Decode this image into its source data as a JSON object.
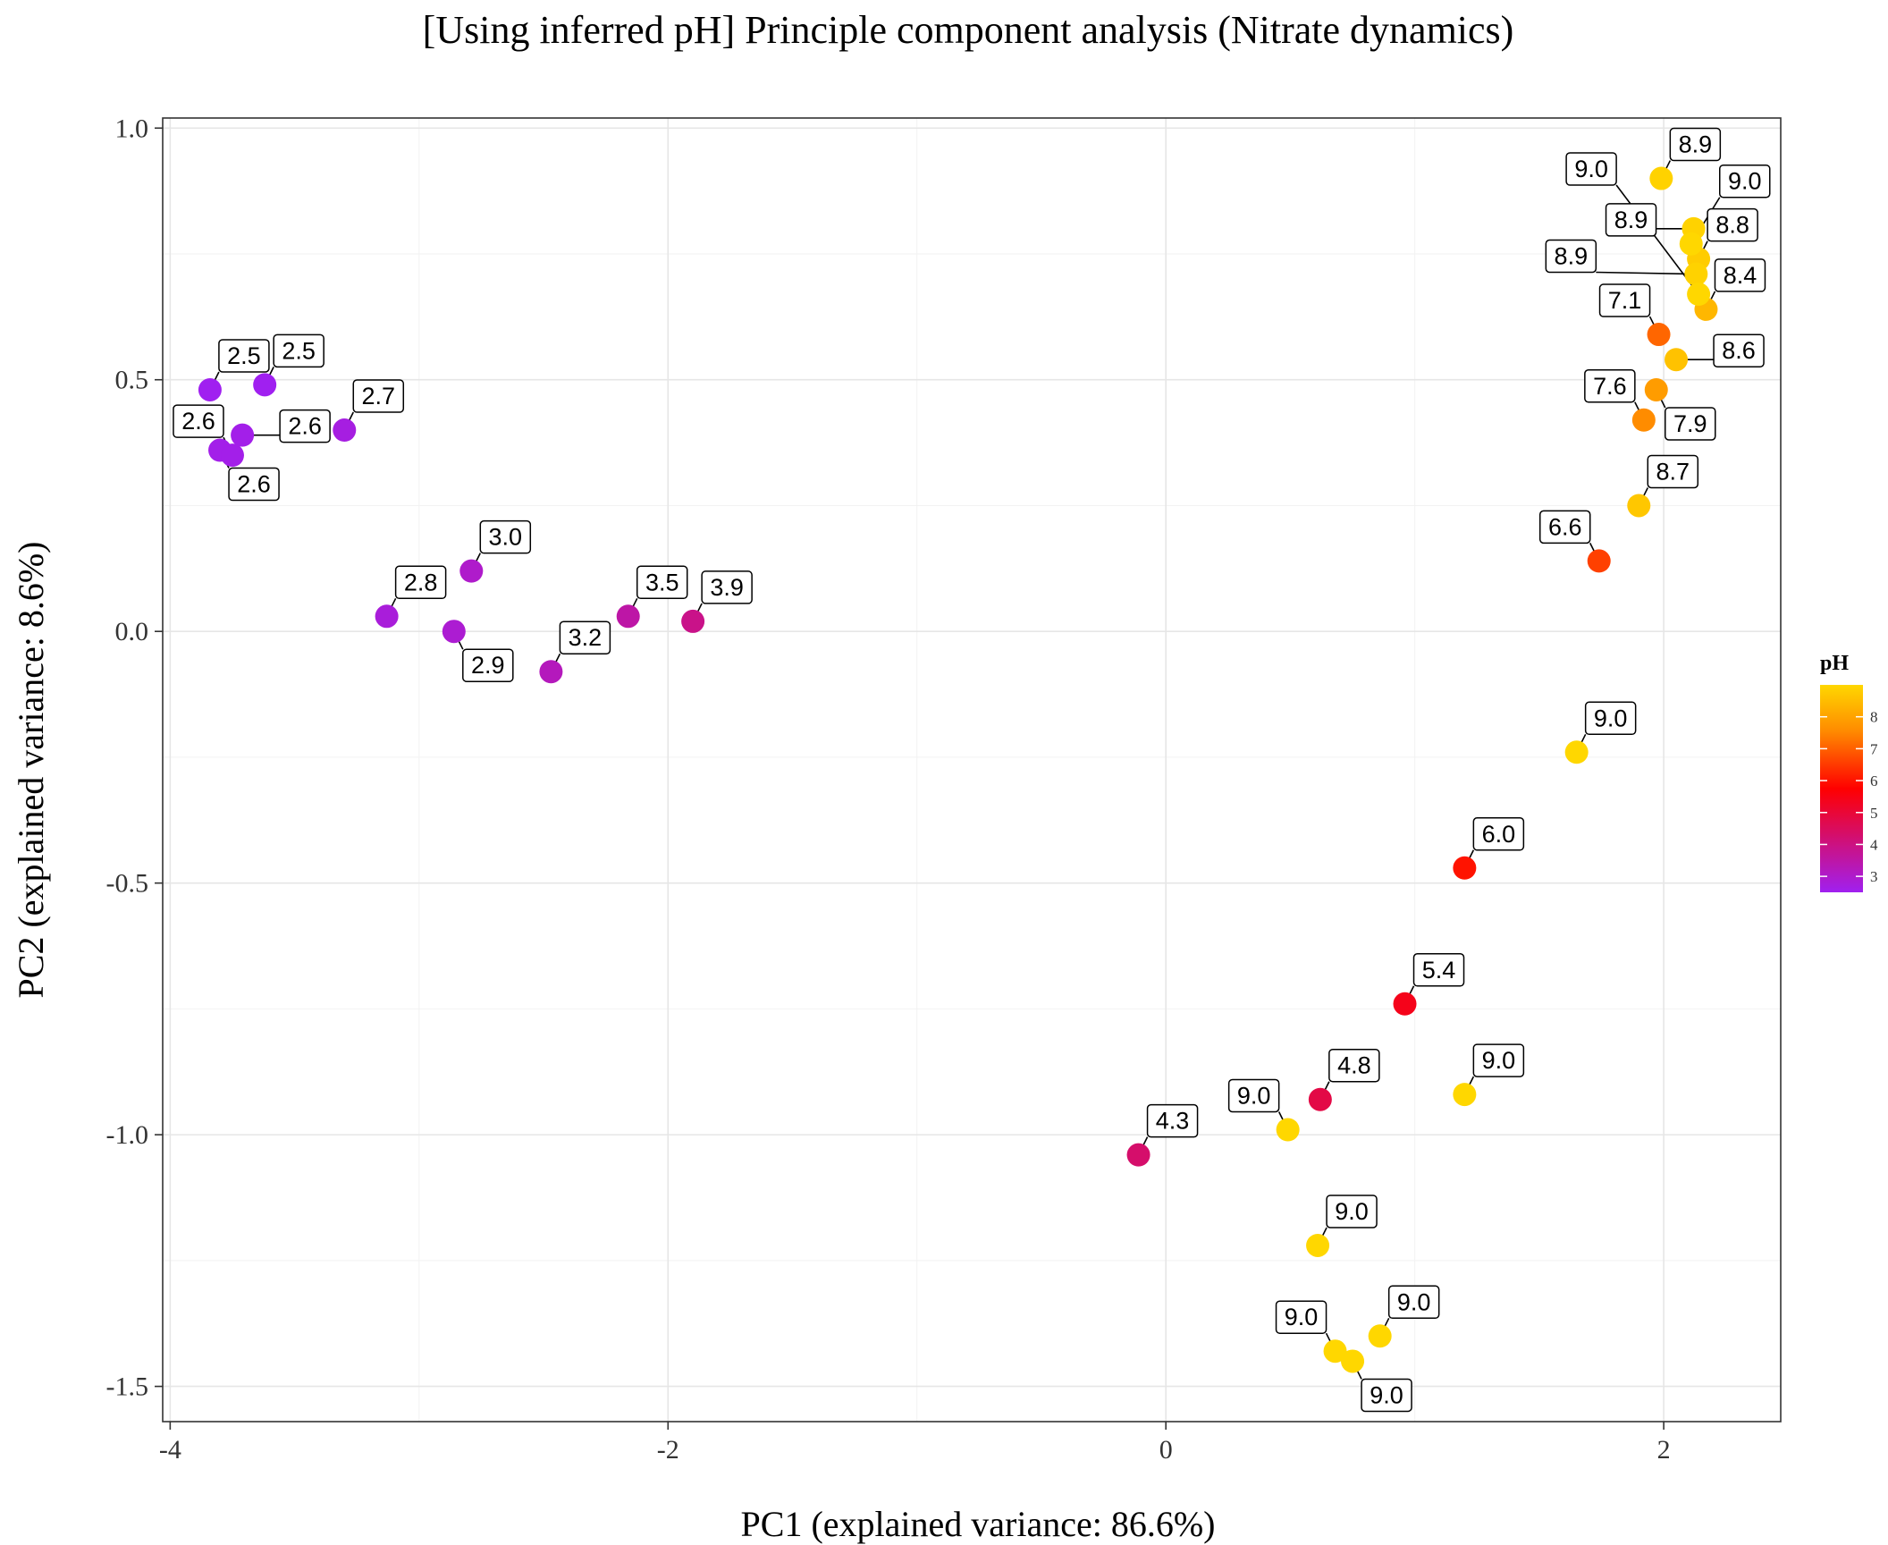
{
  "chart_data": {
    "type": "scatter",
    "title": "[Using inferred pH] Principle component analysis (Nitrate dynamics)",
    "xlabel": "PC1 (explained variance: 86.6%)",
    "ylabel": "PC2 (explained variance: 8.6%)",
    "xlim": [
      -4.03,
      2.47
    ],
    "ylim": [
      -1.57,
      1.02
    ],
    "x_ticks": [
      -4,
      -2,
      0,
      2
    ],
    "x_tick_labels": [
      "-4",
      "-2",
      "0",
      "2"
    ],
    "y_ticks": [
      1.0,
      0.5,
      0.0,
      -0.5,
      -1.0,
      -1.5
    ],
    "y_tick_labels": [
      "1.0",
      "0.5",
      "0.0",
      "-0.5",
      "-1.0",
      "-1.5"
    ],
    "grid": true,
    "color_scale": {
      "title": "pH",
      "ticks": [
        3,
        4,
        5,
        6,
        7,
        8
      ],
      "range": [
        2.5,
        9.0
      ],
      "colors": [
        "#a020f0",
        "#ff0000",
        "#ff8c00",
        "#ffd700"
      ]
    },
    "points": [
      {
        "x": -3.84,
        "y": 0.48,
        "ph": 2.5,
        "label": "2.5"
      },
      {
        "x": -3.62,
        "y": 0.49,
        "ph": 2.5,
        "label": "2.5"
      },
      {
        "x": -3.8,
        "y": 0.36,
        "ph": 2.6,
        "label": "2.6"
      },
      {
        "x": -3.71,
        "y": 0.39,
        "ph": 2.6,
        "label": "2.6"
      },
      {
        "x": -3.75,
        "y": 0.35,
        "ph": 2.6,
        "label": "2.6"
      },
      {
        "x": -3.3,
        "y": 0.4,
        "ph": 2.7,
        "label": "2.7"
      },
      {
        "x": -3.13,
        "y": 0.03,
        "ph": 2.8,
        "label": "2.8"
      },
      {
        "x": -2.86,
        "y": 0.0,
        "ph": 2.9,
        "label": "2.9"
      },
      {
        "x": -2.79,
        "y": 0.12,
        "ph": 3.0,
        "label": "3.0"
      },
      {
        "x": -2.47,
        "y": -0.08,
        "ph": 3.2,
        "label": "3.2"
      },
      {
        "x": -2.16,
        "y": 0.03,
        "ph": 3.5,
        "label": "3.5"
      },
      {
        "x": -1.9,
        "y": 0.02,
        "ph": 3.9,
        "label": "3.9"
      },
      {
        "x": -0.11,
        "y": -1.04,
        "ph": 4.3,
        "label": "4.3"
      },
      {
        "x": 0.62,
        "y": -0.93,
        "ph": 4.8,
        "label": "4.8"
      },
      {
        "x": 0.96,
        "y": -0.74,
        "ph": 5.4,
        "label": "5.4"
      },
      {
        "x": 1.2,
        "y": -0.47,
        "ph": 6.0,
        "label": "6.0"
      },
      {
        "x": 1.74,
        "y": 0.14,
        "ph": 6.6,
        "label": "6.6"
      },
      {
        "x": 1.98,
        "y": 0.59,
        "ph": 7.1,
        "label": "7.1"
      },
      {
        "x": 1.92,
        "y": 0.42,
        "ph": 7.6,
        "label": "7.6"
      },
      {
        "x": 1.97,
        "y": 0.48,
        "ph": 7.9,
        "label": "7.9"
      },
      {
        "x": 2.17,
        "y": 0.64,
        "ph": 8.4,
        "label": "8.4"
      },
      {
        "x": 2.05,
        "y": 0.54,
        "ph": 8.6,
        "label": "8.6"
      },
      {
        "x": 1.9,
        "y": 0.25,
        "ph": 8.7,
        "label": "8.7"
      },
      {
        "x": 2.14,
        "y": 0.74,
        "ph": 8.8,
        "label": "8.8"
      },
      {
        "x": 1.99,
        "y": 0.9,
        "ph": 8.9,
        "label": "8.9"
      },
      {
        "x": 2.12,
        "y": 0.8,
        "ph": 8.9,
        "label": "8.9"
      },
      {
        "x": 2.13,
        "y": 0.71,
        "ph": 8.9,
        "label": "8.9"
      },
      {
        "x": 2.11,
        "y": 0.77,
        "ph": 9.0,
        "label": "9.0"
      },
      {
        "x": 2.14,
        "y": 0.67,
        "ph": 9.0,
        "label": "9.0"
      },
      {
        "x": 1.65,
        "y": -0.24,
        "ph": 9.0,
        "label": "9.0"
      },
      {
        "x": 1.2,
        "y": -0.92,
        "ph": 9.0,
        "label": "9.0"
      },
      {
        "x": 0.49,
        "y": -0.99,
        "ph": 9.0,
        "label": "9.0"
      },
      {
        "x": 0.61,
        "y": -1.22,
        "ph": 9.0,
        "label": "9.0"
      },
      {
        "x": 0.86,
        "y": -1.4,
        "ph": 9.0,
        "label": "9.0"
      },
      {
        "x": 0.68,
        "y": -1.43,
        "ph": 9.0,
        "label": "9.0"
      },
      {
        "x": 0.75,
        "y": -1.45,
        "ph": 9.0,
        "label": "9.0"
      }
    ]
  }
}
